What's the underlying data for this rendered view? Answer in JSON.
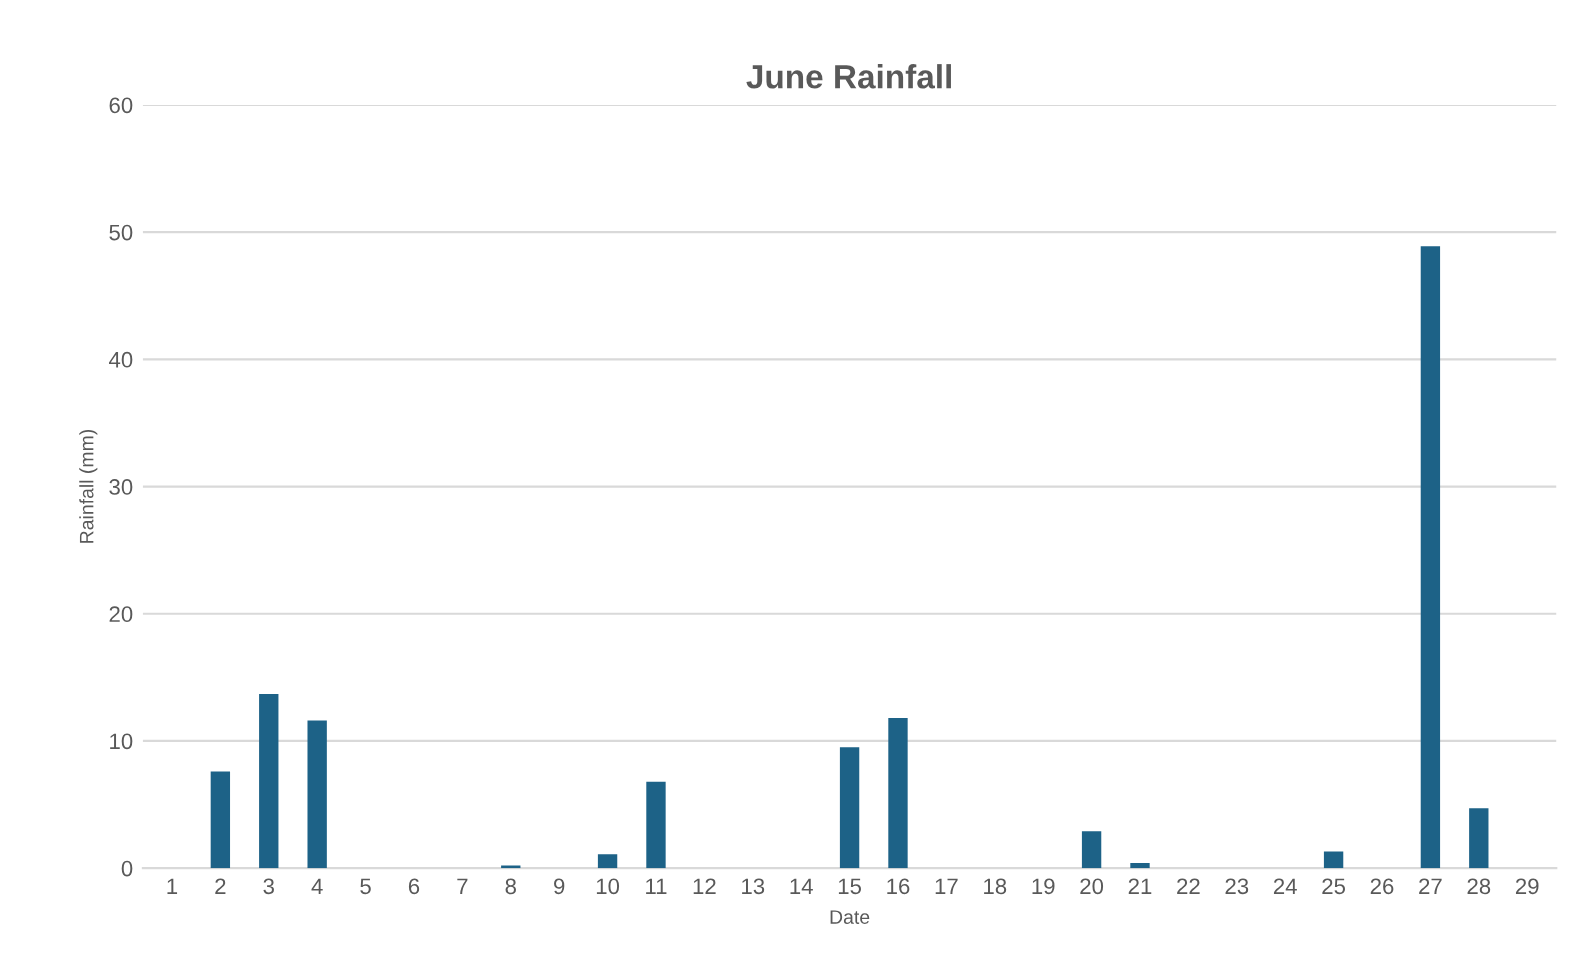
{
  "chart_data": {
    "type": "bar",
    "title": "June Rainfall",
    "xlabel": "Date",
    "ylabel": "Rainfall (mm)",
    "categories": [
      "1",
      "2",
      "3",
      "4",
      "5",
      "6",
      "7",
      "8",
      "9",
      "10",
      "11",
      "12",
      "13",
      "14",
      "15",
      "16",
      "17",
      "18",
      "19",
      "20",
      "21",
      "22",
      "23",
      "24",
      "25",
      "26",
      "27",
      "28",
      "29"
    ],
    "values": [
      0,
      7.6,
      13.7,
      11.6,
      0,
      0,
      0,
      0.2,
      0,
      1.1,
      6.8,
      0,
      0,
      0,
      9.5,
      11.8,
      0,
      0,
      0,
      2.9,
      0.4,
      0,
      0,
      0,
      1.3,
      0,
      48.9,
      4.7,
      0
    ],
    "color": "#1d6287",
    "ylim": [
      0,
      60
    ],
    "yticks": [
      0,
      10,
      20,
      30,
      40,
      50,
      60
    ],
    "grid": "y",
    "legend": false
  }
}
